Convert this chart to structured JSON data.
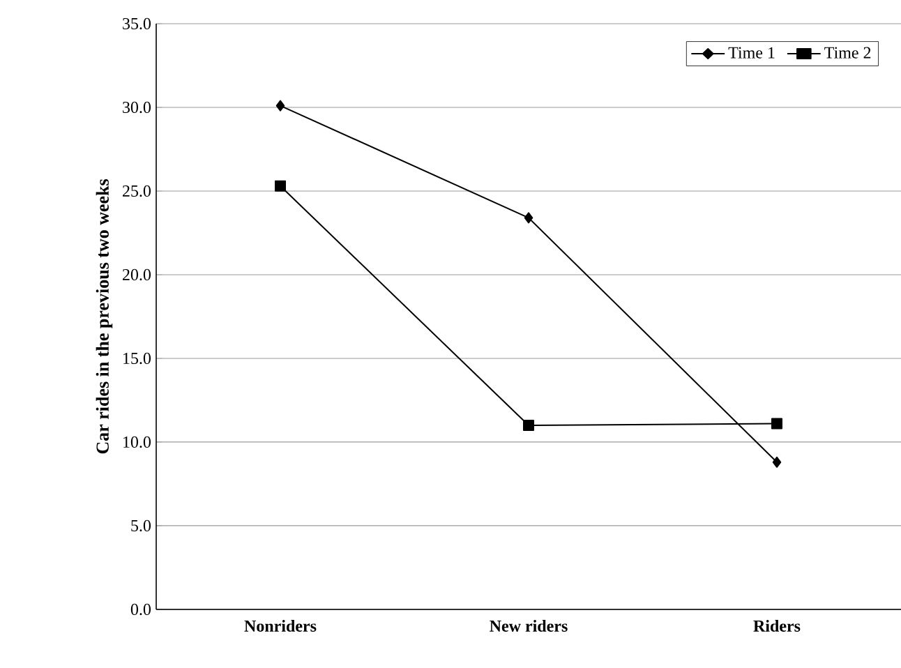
{
  "chart_data": {
    "type": "line",
    "ylabel": "Car rides in the previous two weeks",
    "categories": [
      "Nonriders",
      "New riders",
      "Riders"
    ],
    "series": [
      {
        "name": "Time 1",
        "color": "#000000",
        "marker": "diamond",
        "values": [
          30.1,
          23.4,
          8.8
        ]
      },
      {
        "name": "Time 2",
        "color": "#000000",
        "marker": "square",
        "values": [
          25.3,
          11.0,
          11.1
        ]
      }
    ],
    "ylim": [
      0,
      35
    ],
    "yticks": [
      {
        "value": 0,
        "label": "0.0"
      },
      {
        "value": 5,
        "label": "5.0"
      },
      {
        "value": 10,
        "label": "10.0"
      },
      {
        "value": 15,
        "label": "15.0"
      },
      {
        "value": 20,
        "label": "20.0"
      },
      {
        "value": 25,
        "label": "25.0"
      },
      {
        "value": 30,
        "label": "30.0"
      },
      {
        "value": 35,
        "label": "35.0"
      }
    ],
    "grid": "y",
    "legend": "top right",
    "line_style": "solid"
  }
}
